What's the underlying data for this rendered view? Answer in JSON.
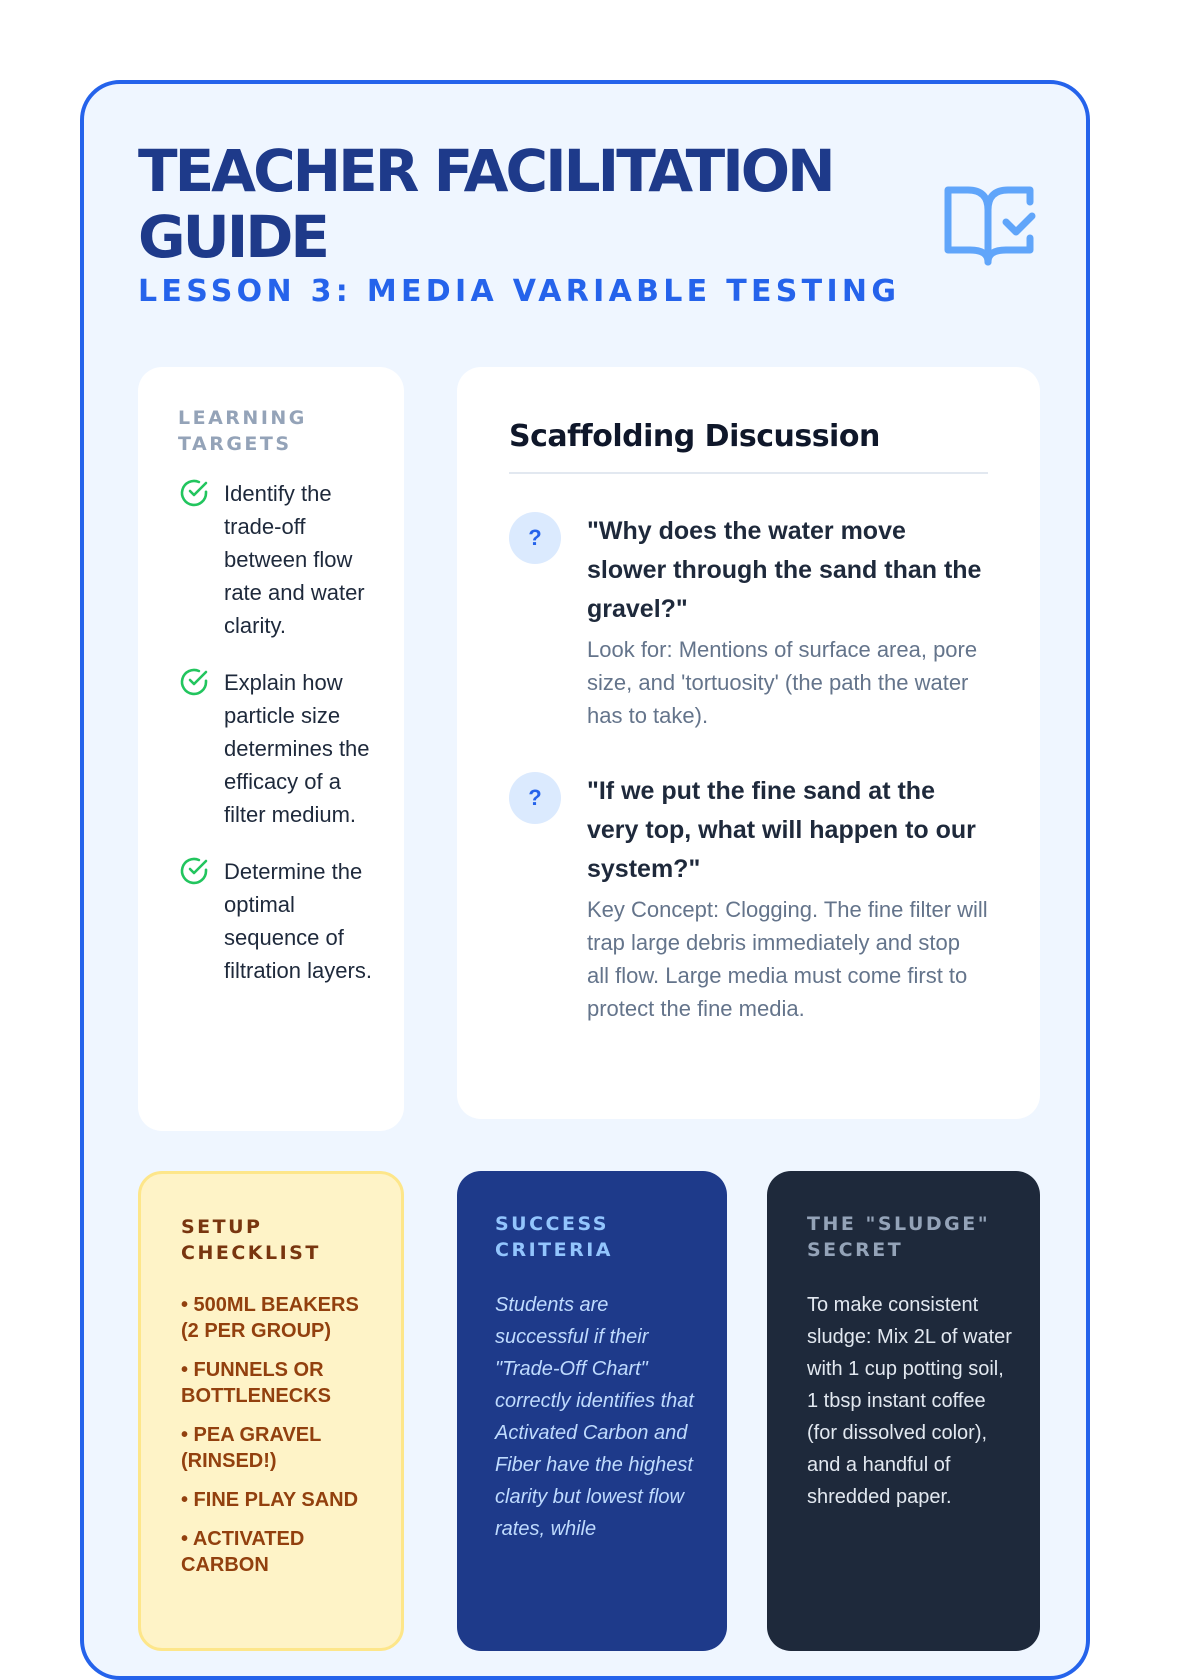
{
  "header": {
    "title": "TEACHER FACILITATION GUIDE",
    "subtitle": "LESSON 3: MEDIA VARIABLE TESTING",
    "icon": "book-open-check-icon"
  },
  "learning_targets": {
    "label": "Learning Targets",
    "items": [
      "Identify the trade-off between flow rate and water clarity.",
      "Explain how particle size determines the efficacy of a filter medium.",
      "Determine the optimal sequence of filtration layers."
    ]
  },
  "discussion": {
    "title": "Scaffolding Discussion",
    "badge": "?",
    "questions": [
      {
        "question": "\"Why does the water move slower through the sand than the gravel?\"",
        "answer": "Look for: Mentions of surface area, pore size, and 'tortuosity' (the path the water has to take)."
      },
      {
        "question": "\"If we put the fine sand at the very top, what will happen to our system?\"",
        "answer": "Key Concept: Clogging. The fine filter will trap large debris immediately and stop all flow. Large media must come first to protect the fine media."
      }
    ]
  },
  "setup": {
    "label": "Setup Checklist",
    "items": [
      "• 500ml Beakers (2 per group)",
      "• Funnels or Bottlenecks",
      "• Pea Gravel (Rinsed!)",
      "• Fine Play Sand",
      "• Activated Carbon"
    ]
  },
  "success": {
    "label": "Success Criteria",
    "text": "Students are successful if their \"Trade-Off Chart\" correctly identifies that Activated Carbon and Fiber have the highest clarity but lowest flow rates, while"
  },
  "sludge": {
    "label": "The \"Sludge\" Secret",
    "text": "To make consistent sludge: Mix 2L of water with 1 cup potting soil, 1 tbsp instant coffee (for dissolved color), and a handful of shredded paper."
  },
  "colors": {
    "accent": "#2563eb",
    "title": "#1e3a8a",
    "check": "#22c55e",
    "setup_bg": "#fef3c7",
    "success_bg": "#1e3a8a",
    "sludge_bg": "#1e293b"
  }
}
